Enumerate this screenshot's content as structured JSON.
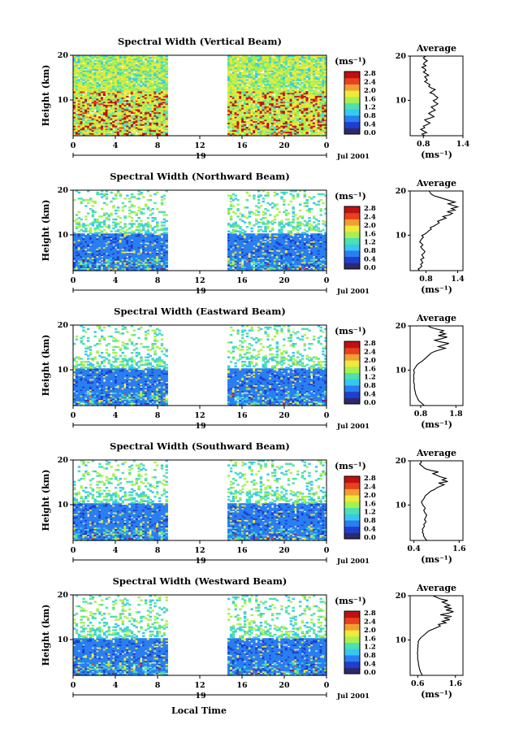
{
  "chart_data": [
    {
      "type": "heatmap",
      "title": "Spectral Width (Vertical Beam)",
      "ylabel": "Height (km)",
      "yticks": [
        "20",
        "10"
      ],
      "xticks": [
        "0",
        "4",
        "8",
        "12",
        "16",
        "20",
        "0"
      ],
      "day_label": "19",
      "date_label": "Jul 2001",
      "xlim": [
        0,
        24
      ],
      "ylim": [
        2,
        20
      ],
      "data_gap_hours": [
        9,
        14.7
      ],
      "colorbar": {
        "unit": "(ms⁻¹)",
        "ticks": [
          "2.8",
          "2.4",
          "2.0",
          "1.6",
          "1.2",
          "0.8",
          "0.4",
          "0.0"
        ],
        "range": [
          0,
          2.8
        ]
      },
      "profile": {
        "title": "Average",
        "xlabel": "(ms⁻¹)",
        "xticks": [
          "0.8",
          "1.4"
        ],
        "xlim": [
          0.6,
          1.4
        ],
        "yticks": [
          "20",
          "10"
        ],
        "values": [
          0.82,
          0.78,
          0.85,
          0.8,
          0.76,
          0.82,
          0.8,
          0.86,
          0.9,
          0.85,
          0.82,
          0.9,
          0.96,
          0.92,
          0.88,
          0.92,
          0.98,
          0.95,
          0.92,
          0.98,
          1.02,
          0.98,
          0.95,
          1.0,
          1.02,
          0.98,
          0.96,
          0.9,
          0.94,
          0.98,
          0.92,
          0.88,
          0.9,
          0.86,
          0.82,
          0.86,
          0.84,
          0.82,
          0.88,
          0.84,
          0.8,
          0.84,
          0.82,
          0.78,
          0.84,
          0.8,
          0.82,
          0.86,
          0.82,
          0.8,
          0.84
        ]
      }
    },
    {
      "type": "heatmap",
      "title": "Spectral Width (Northward Beam)",
      "ylabel": "Height (km)",
      "yticks": [
        "20",
        "10"
      ],
      "xticks": [
        "0",
        "4",
        "8",
        "12",
        "16",
        "20",
        "0"
      ],
      "day_label": "19",
      "date_label": "Jul 2001",
      "xlim": [
        0,
        24
      ],
      "ylim": [
        2,
        20
      ],
      "data_gap_hours": [
        9,
        14.7
      ],
      "colorbar": {
        "unit": "(ms⁻¹)",
        "ticks": [
          "2.8",
          "2.4",
          "2.0",
          "1.6",
          "1.2",
          "0.8",
          "0.4",
          "0.0"
        ],
        "range": [
          0,
          2.8
        ]
      },
      "profile": {
        "title": "Average",
        "xlabel": "(ms⁻¹)",
        "xticks": [
          "0.8",
          "1.4"
        ],
        "xlim": [
          0.5,
          1.5
        ],
        "yticks": [
          "20",
          "10"
        ],
        "values": [
          0.68,
          0.65,
          0.7,
          0.72,
          0.7,
          0.74,
          0.72,
          0.7,
          0.76,
          0.74,
          0.72,
          0.76,
          0.78,
          0.75,
          0.72,
          0.7,
          0.74,
          0.72,
          0.68,
          0.7,
          0.72,
          0.75,
          0.72,
          0.78,
          0.82,
          0.85,
          0.9,
          0.88,
          0.95,
          1.0,
          1.05,
          1.02,
          1.1,
          1.18,
          1.12,
          1.25,
          1.3,
          1.2,
          1.35,
          1.28,
          1.4,
          1.3,
          1.22,
          1.35,
          1.25,
          1.15,
          1.05,
          0.95,
          0.9,
          0.88,
          0.86
        ]
      }
    },
    {
      "type": "heatmap",
      "title": "Spectral Width (Eastward Beam)",
      "ylabel": "Height (km)",
      "yticks": [
        "20",
        "10"
      ],
      "xticks": [
        "0",
        "4",
        "8",
        "12",
        "16",
        "20",
        "0"
      ],
      "day_label": "19",
      "date_label": "Jul 2001",
      "xlim": [
        0,
        24
      ],
      "ylim": [
        2,
        20
      ],
      "data_gap_hours": [
        9,
        14.7
      ],
      "colorbar": {
        "unit": "(ms⁻¹)",
        "ticks": [
          "2.8",
          "2.4",
          "2.0",
          "1.6",
          "1.2",
          "0.8",
          "0.4",
          "0.0"
        ],
        "range": [
          0,
          2.8
        ]
      },
      "profile": {
        "title": "Average",
        "xlabel": "(ms⁻¹)",
        "xticks": [
          "0.8",
          "1.8"
        ],
        "xlim": [
          0.5,
          2.0
        ],
        "yticks": [
          "20",
          "10"
        ],
        "values": [
          0.9,
          0.85,
          0.8,
          0.75,
          0.72,
          0.7,
          0.68,
          0.66,
          0.65,
          0.64,
          0.63,
          0.62,
          0.62,
          0.62,
          0.61,
          0.6,
          0.6,
          0.61,
          0.6,
          0.6,
          0.61,
          0.62,
          0.6,
          0.62,
          0.65,
          0.68,
          0.72,
          0.78,
          0.85,
          0.9,
          0.95,
          1.0,
          1.05,
          1.1,
          1.2,
          1.35,
          1.5,
          1.3,
          1.45,
          1.6,
          1.35,
          1.2,
          1.4,
          1.55,
          1.3,
          1.5,
          1.35,
          1.45,
          1.25,
          1.1,
          1.0
        ]
      }
    },
    {
      "type": "heatmap",
      "title": "Spectral Width (Southward Beam)",
      "ylabel": "Height (km)",
      "yticks": [
        "20",
        "10"
      ],
      "xticks": [
        "0",
        "4",
        "8",
        "12",
        "16",
        "20",
        "0"
      ],
      "day_label": "19",
      "date_label": "Jul 2001",
      "xlim": [
        0,
        24
      ],
      "ylim": [
        2,
        20
      ],
      "data_gap_hours": [
        9,
        14.7
      ],
      "colorbar": {
        "unit": "(ms⁻¹)",
        "ticks": [
          "2.8",
          "2.4",
          "2.0",
          "1.6",
          "1.2",
          "0.8",
          "0.4",
          "0.0"
        ],
        "range": [
          0,
          2.8
        ]
      },
      "profile": {
        "title": "Average",
        "xlabel": "(ms⁻¹)",
        "xticks": [
          "0.4",
          "1.6"
        ],
        "xlim": [
          0.3,
          1.7
        ],
        "yticks": [
          "20",
          "10"
        ],
        "values": [
          0.75,
          0.7,
          0.68,
          0.65,
          0.66,
          0.62,
          0.64,
          0.62,
          0.65,
          0.68,
          0.66,
          0.7,
          0.72,
          0.68,
          0.7,
          0.72,
          0.74,
          0.7,
          0.68,
          0.66,
          0.7,
          0.68,
          0.64,
          0.62,
          0.6,
          0.62,
          0.66,
          0.68,
          0.7,
          0.75,
          0.8,
          0.85,
          0.95,
          1.0,
          1.1,
          1.2,
          1.05,
          1.3,
          1.15,
          1.25,
          1.1,
          1.0,
          0.9,
          1.05,
          0.85,
          0.7,
          0.65,
          0.6,
          0.55,
          0.6,
          0.58
        ]
      }
    },
    {
      "type": "heatmap",
      "title": "Spectral Width (Westward Beam)",
      "ylabel": "Height (km)",
      "yticks": [
        "20",
        "10"
      ],
      "xticks": [
        "0",
        "4",
        "8",
        "12",
        "16",
        "20",
        "0"
      ],
      "day_label": "19",
      "date_label": "Jul 2001",
      "xlim": [
        0,
        24
      ],
      "ylim": [
        2,
        20
      ],
      "data_gap_hours": [
        9,
        14.7
      ],
      "colorbar": {
        "unit": "(ms⁻¹)",
        "ticks": [
          "2.8",
          "2.4",
          "2.0",
          "1.6",
          "1.2",
          "0.8",
          "0.4",
          "0.0"
        ],
        "range": [
          0,
          2.8
        ]
      },
      "profile": {
        "title": "Average",
        "xlabel": "(ms⁻¹)",
        "xticks": [
          "0.6",
          "1.6"
        ],
        "xlim": [
          0.4,
          1.8
        ],
        "yticks": [
          "20",
          "10"
        ],
        "values": [
          0.72,
          0.7,
          0.68,
          0.66,
          0.65,
          0.64,
          0.63,
          0.62,
          0.62,
          0.61,
          0.6,
          0.6,
          0.6,
          0.6,
          0.59,
          0.6,
          0.6,
          0.6,
          0.61,
          0.6,
          0.62,
          0.61,
          0.63,
          0.66,
          0.7,
          0.75,
          0.8,
          0.85,
          0.9,
          1.0,
          1.1,
          1.2,
          1.15,
          1.35,
          1.25,
          1.45,
          1.3,
          1.5,
          1.2,
          1.4,
          1.55,
          1.35,
          1.5,
          1.3,
          1.45,
          1.35,
          1.25,
          1.4,
          1.2,
          1.1,
          1.0
        ]
      }
    }
  ],
  "xlabel": "Local Time",
  "colorscale": [
    "#2c2a6c",
    "#1f3fd0",
    "#2a7ff0",
    "#36c8f0",
    "#4ee0b0",
    "#a8f050",
    "#f0e83a",
    "#f0a030",
    "#e84020",
    "#c01010"
  ]
}
